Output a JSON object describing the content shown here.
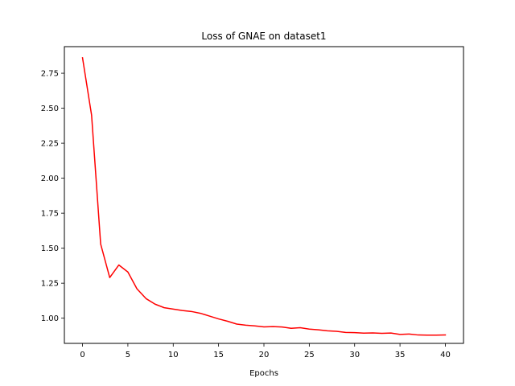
{
  "chart_data": {
    "type": "line",
    "title": "Loss of GNAE on dataset1",
    "xlabel": "Epochs",
    "ylabel": "",
    "xlim": [
      -2,
      42
    ],
    "ylim": [
      0.82,
      2.94
    ],
    "xticks": [
      0,
      5,
      10,
      15,
      20,
      25,
      30,
      35,
      40
    ],
    "yticks": [
      1.0,
      1.25,
      1.5,
      1.75,
      2.0,
      2.25,
      2.5,
      2.75
    ],
    "grid": false,
    "series": [
      {
        "color": "#ff0000",
        "x": [
          0,
          1,
          2,
          3,
          4,
          5,
          6,
          7,
          8,
          9,
          10,
          11,
          12,
          13,
          14,
          15,
          16,
          17,
          18,
          19,
          20,
          21,
          22,
          23,
          24,
          25,
          26,
          27,
          28,
          29,
          30,
          31,
          32,
          33,
          34,
          35,
          36,
          37,
          38,
          39,
          40
        ],
        "values": [
          2.86,
          2.45,
          1.53,
          1.29,
          1.38,
          1.33,
          1.21,
          1.14,
          1.1,
          1.075,
          1.065,
          1.055,
          1.048,
          1.035,
          1.015,
          0.995,
          0.978,
          0.958,
          0.95,
          0.945,
          0.938,
          0.94,
          0.937,
          0.928,
          0.932,
          0.922,
          0.917,
          0.91,
          0.906,
          0.898,
          0.897,
          0.893,
          0.895,
          0.892,
          0.894,
          0.884,
          0.887,
          0.88,
          0.879,
          0.879,
          0.88
        ]
      }
    ]
  }
}
